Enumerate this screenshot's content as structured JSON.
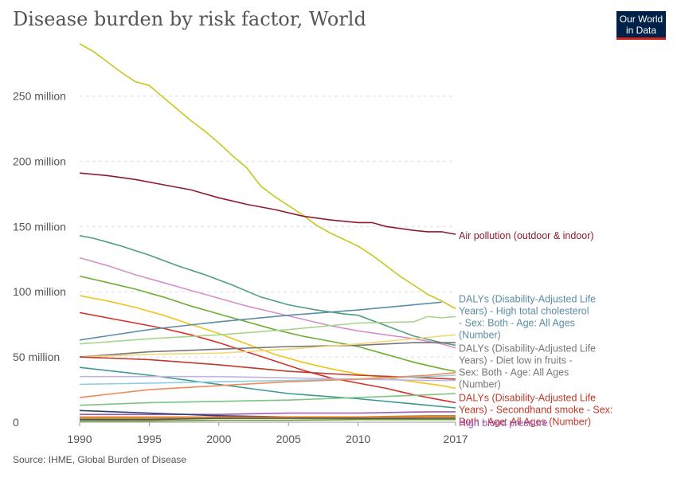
{
  "header": {
    "title": "Disease burden by risk factor, World",
    "logo_line1": "Our World",
    "logo_line2": "in Data"
  },
  "footer": {
    "source": "Source: IHME, Global Burden of Disease"
  },
  "chart_data": {
    "type": "line",
    "title": "Disease burden by risk factor, World",
    "xlabel": "",
    "ylabel": "",
    "xlim": [
      1990,
      2017
    ],
    "ylim": [
      0,
      290000000
    ],
    "x_ticks": [
      1990,
      1995,
      2000,
      2005,
      2010,
      2017
    ],
    "y_ticks": [
      {
        "value": 0,
        "label": "0"
      },
      {
        "value": 50000000,
        "label": "50 million"
      },
      {
        "value": 100000000,
        "label": "100 million"
      },
      {
        "value": 150000000,
        "label": "150 million"
      },
      {
        "value": 200000000,
        "label": "200 million"
      },
      {
        "value": 250000000,
        "label": "250 million"
      }
    ],
    "grid": true,
    "legend": "right-inline",
    "series": [
      {
        "color": "#c7c71e",
        "values": [
          [
            1990,
            290000000
          ],
          [
            1991,
            284000000
          ],
          [
            1992,
            276000000
          ],
          [
            1993,
            268000000
          ],
          [
            1994,
            261000000
          ],
          [
            1995,
            258000000
          ],
          [
            1996,
            249000000
          ],
          [
            1997,
            240000000
          ],
          [
            1998,
            231000000
          ],
          [
            1999,
            223000000
          ],
          [
            2000,
            214000000
          ],
          [
            2001,
            204000000
          ],
          [
            2002,
            195000000
          ],
          [
            2003,
            181000000
          ],
          [
            2004,
            173000000
          ],
          [
            2005,
            166000000
          ],
          [
            2006,
            159000000
          ],
          [
            2007,
            151000000
          ],
          [
            2008,
            145000000
          ],
          [
            2009,
            140000000
          ],
          [
            2010,
            135000000
          ],
          [
            2011,
            128000000
          ],
          [
            2012,
            120000000
          ],
          [
            2013,
            112000000
          ],
          [
            2014,
            105000000
          ],
          [
            2015,
            98000000
          ],
          [
            2016,
            93000000
          ],
          [
            2017,
            87000000
          ]
        ]
      },
      {
        "name": "Air pollution (outdoor & indoor)",
        "color": "#8c1c2c",
        "values": [
          [
            1990,
            191000000
          ],
          [
            1992,
            189000000
          ],
          [
            1994,
            186000000
          ],
          [
            1996,
            182000000
          ],
          [
            1998,
            178000000
          ],
          [
            2000,
            172000000
          ],
          [
            2002,
            167000000
          ],
          [
            2004,
            163000000
          ],
          [
            2006,
            158000000
          ],
          [
            2008,
            155000000
          ],
          [
            2010,
            153000000
          ],
          [
            2011,
            153000000
          ],
          [
            2012,
            150000000
          ],
          [
            2014,
            147000000
          ],
          [
            2015,
            146000000
          ],
          [
            2016,
            146000000
          ],
          [
            2017,
            144000000
          ]
        ]
      },
      {
        "color": "#4f9e7f",
        "values": [
          [
            1990,
            143000000
          ],
          [
            1991,
            141000000
          ],
          [
            1993,
            135000000
          ],
          [
            1995,
            128000000
          ],
          [
            1997,
            120000000
          ],
          [
            1999,
            113000000
          ],
          [
            2001,
            105000000
          ],
          [
            2003,
            96000000
          ],
          [
            2005,
            90000000
          ],
          [
            2007,
            86000000
          ],
          [
            2009,
            83000000
          ],
          [
            2010,
            82000000
          ],
          [
            2012,
            74000000
          ],
          [
            2014,
            66000000
          ],
          [
            2016,
            61000000
          ],
          [
            2017,
            59000000
          ]
        ]
      },
      {
        "color": "#d88fc7",
        "values": [
          [
            1990,
            126000000
          ],
          [
            1992,
            120000000
          ],
          [
            1994,
            113000000
          ],
          [
            1996,
            107000000
          ],
          [
            1998,
            101000000
          ],
          [
            2000,
            95000000
          ],
          [
            2002,
            89000000
          ],
          [
            2004,
            84000000
          ],
          [
            2006,
            79000000
          ],
          [
            2008,
            74000000
          ],
          [
            2010,
            70000000
          ],
          [
            2012,
            67000000
          ],
          [
            2014,
            64000000
          ],
          [
            2016,
            60000000
          ],
          [
            2017,
            57000000
          ]
        ]
      },
      {
        "color": "#6cae30",
        "values": [
          [
            1990,
            112000000
          ],
          [
            1992,
            107000000
          ],
          [
            1994,
            102000000
          ],
          [
            1996,
            96000000
          ],
          [
            1998,
            89000000
          ],
          [
            2000,
            83000000
          ],
          [
            2002,
            77000000
          ],
          [
            2004,
            71000000
          ],
          [
            2006,
            66000000
          ],
          [
            2008,
            62000000
          ],
          [
            2010,
            58000000
          ],
          [
            2012,
            52000000
          ],
          [
            2014,
            46000000
          ],
          [
            2016,
            41000000
          ],
          [
            2017,
            39000000
          ]
        ]
      },
      {
        "color": "#f0c418",
        "values": [
          [
            1990,
            97000000
          ],
          [
            1992,
            93000000
          ],
          [
            1994,
            88000000
          ],
          [
            1996,
            82000000
          ],
          [
            1998,
            75000000
          ],
          [
            2000,
            68000000
          ],
          [
            2002,
            60000000
          ],
          [
            2004,
            52000000
          ],
          [
            2006,
            46000000
          ],
          [
            2008,
            41000000
          ],
          [
            2010,
            37000000
          ],
          [
            2012,
            34000000
          ],
          [
            2014,
            31000000
          ],
          [
            2016,
            28000000
          ],
          [
            2017,
            26000000
          ]
        ]
      },
      {
        "color": "#d73027",
        "values": [
          [
            1990,
            84000000
          ],
          [
            1992,
            80000000
          ],
          [
            1994,
            76000000
          ],
          [
            1996,
            72000000
          ],
          [
            1998,
            67000000
          ],
          [
            2000,
            61000000
          ],
          [
            2002,
            54000000
          ],
          [
            2004,
            47000000
          ],
          [
            2006,
            40000000
          ],
          [
            2008,
            34000000
          ],
          [
            2010,
            30000000
          ],
          [
            2012,
            26000000
          ],
          [
            2014,
            21000000
          ],
          [
            2016,
            17000000
          ],
          [
            2017,
            15000000
          ]
        ]
      },
      {
        "name": "DALYs (Disability-Adjusted Life Years) - High total cholesterol - Sex: Both - Age: All Ages (Number)",
        "color": "#5b8ea6",
        "values": [
          [
            1990,
            63000000
          ],
          [
            1995,
            71000000
          ],
          [
            2000,
            77000000
          ],
          [
            2005,
            82000000
          ],
          [
            2010,
            86000000
          ],
          [
            2016,
            92000000
          ]
        ]
      },
      {
        "color": "#a8d48c",
        "values": [
          [
            1990,
            60000000
          ],
          [
            1995,
            64000000
          ],
          [
            2000,
            67000000
          ],
          [
            2005,
            71000000
          ],
          [
            2010,
            76000000
          ],
          [
            2014,
            77000000
          ],
          [
            2015,
            81000000
          ],
          [
            2016,
            80000000
          ],
          [
            2017,
            81000000
          ]
        ]
      },
      {
        "name": "DALYs (Disability-Adjusted Life Years) - Diet low in fruits - Sex: Both - Age: All Ages (Number)",
        "color": "#777777",
        "values": [
          [
            1990,
            50000000
          ],
          [
            1995,
            54000000
          ],
          [
            2000,
            56000000
          ],
          [
            2005,
            58000000
          ],
          [
            2010,
            59000000
          ],
          [
            2014,
            61000000
          ],
          [
            2017,
            61000000
          ]
        ]
      },
      {
        "color": "#f5d67a",
        "values": [
          [
            1990,
            50000000
          ],
          [
            1995,
            52000000
          ],
          [
            2000,
            53000000
          ],
          [
            2005,
            56000000
          ],
          [
            2010,
            60000000
          ],
          [
            2015,
            65000000
          ],
          [
            2017,
            67000000
          ]
        ]
      },
      {
        "name": "DALYs (Disability-Adjusted Life Years) - Secondhand smoke - Sex: Both - Age: All Ages (Number)",
        "color": "#c0392b",
        "values": [
          [
            1990,
            50000000
          ],
          [
            1995,
            48000000
          ],
          [
            2000,
            44000000
          ],
          [
            2005,
            39000000
          ],
          [
            2010,
            36000000
          ],
          [
            2015,
            34000000
          ],
          [
            2017,
            33000000
          ]
        ]
      },
      {
        "color": "#3a9a8c",
        "values": [
          [
            1990,
            42000000
          ],
          [
            1995,
            36000000
          ],
          [
            2000,
            29000000
          ],
          [
            2005,
            22000000
          ],
          [
            2010,
            18000000
          ],
          [
            2015,
            13000000
          ],
          [
            2017,
            11000000
          ]
        ]
      },
      {
        "color": "#c2b5e3",
        "values": [
          [
            1990,
            35000000
          ],
          [
            1995,
            35000000
          ],
          [
            2000,
            35000000
          ],
          [
            2005,
            34000000
          ],
          [
            2010,
            33000000
          ],
          [
            2015,
            32000000
          ],
          [
            2017,
            32000000
          ]
        ]
      },
      {
        "color": "#8dcfe0",
        "values": [
          [
            1990,
            29000000
          ],
          [
            1995,
            30000000
          ],
          [
            2000,
            31000000
          ],
          [
            2005,
            32000000
          ],
          [
            2010,
            33000000
          ],
          [
            2015,
            35000000
          ],
          [
            2017,
            36000000
          ]
        ]
      },
      {
        "color": "#f08a5d",
        "values": [
          [
            1990,
            19000000
          ],
          [
            1995,
            25000000
          ],
          [
            2000,
            28000000
          ],
          [
            2005,
            31000000
          ],
          [
            2010,
            33000000
          ],
          [
            2015,
            36000000
          ],
          [
            2017,
            38000000
          ]
        ]
      },
      {
        "color": "#7cc47f",
        "values": [
          [
            1990,
            13000000
          ],
          [
            1995,
            15000000
          ],
          [
            2000,
            16000000
          ],
          [
            2005,
            17000000
          ],
          [
            2010,
            19000000
          ],
          [
            2015,
            21000000
          ],
          [
            2017,
            22000000
          ]
        ]
      },
      {
        "name": "High blood pressure",
        "color": "#9e59b8",
        "values": [
          [
            1990,
            6000000
          ],
          [
            1995,
            6000000
          ],
          [
            2000,
            6000000
          ],
          [
            2005,
            7000000
          ],
          [
            2010,
            7000000
          ],
          [
            2015,
            8000000
          ],
          [
            2017,
            8000000
          ]
        ]
      },
      {
        "color": "#2c3e7a",
        "values": [
          [
            1990,
            9000000
          ],
          [
            1995,
            7000000
          ],
          [
            2000,
            5000000
          ],
          [
            2005,
            4000000
          ],
          [
            2010,
            3000000
          ],
          [
            2015,
            2000000
          ],
          [
            2017,
            2000000
          ]
        ]
      },
      {
        "color": "#b88a3e",
        "values": [
          [
            1990,
            3000000
          ],
          [
            1995,
            3000000
          ],
          [
            2000,
            3000000
          ],
          [
            2005,
            4000000
          ],
          [
            2010,
            4000000
          ],
          [
            2015,
            5000000
          ],
          [
            2017,
            5000000
          ]
        ]
      },
      {
        "color": "#555555",
        "values": [
          [
            1990,
            2000000
          ],
          [
            1995,
            2000000
          ],
          [
            2000,
            3000000
          ],
          [
            2005,
            3000000
          ],
          [
            2010,
            3000000
          ],
          [
            2015,
            3000000
          ],
          [
            2017,
            3000000
          ]
        ]
      },
      {
        "color": "#e67e22",
        "values": [
          [
            1990,
            4000000
          ],
          [
            1995,
            4000000
          ],
          [
            2000,
            4000000
          ],
          [
            2005,
            4000000
          ],
          [
            2010,
            4000000
          ],
          [
            2015,
            4000000
          ],
          [
            2017,
            4000000
          ]
        ]
      },
      {
        "color": "#6d9e2f",
        "values": [
          [
            1990,
            1000000
          ],
          [
            1995,
            1000000
          ],
          [
            2000,
            1500000
          ],
          [
            2005,
            1500000
          ],
          [
            2010,
            2000000
          ],
          [
            2015,
            2000000
          ],
          [
            2017,
            2000000
          ]
        ]
      }
    ]
  }
}
